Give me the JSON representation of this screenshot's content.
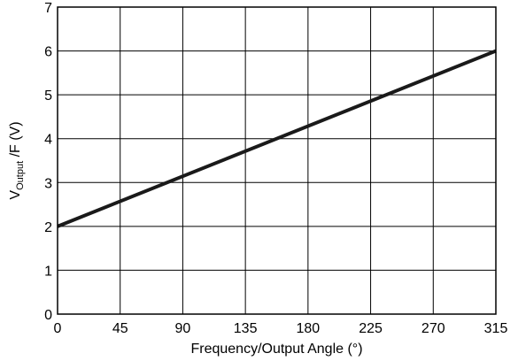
{
  "chart_data": {
    "type": "line",
    "xlabel": "Frequency/Output Angle (°)",
    "ylabel": {
      "main": "V",
      "sub": "Output",
      "rest": " /F (V)"
    },
    "xlim": [
      0,
      315
    ],
    "ylim": [
      0,
      7
    ],
    "x_ticks": [
      0,
      45,
      90,
      135,
      180,
      225,
      270,
      315
    ],
    "y_ticks": [
      0,
      1,
      2,
      3,
      4,
      5,
      6,
      7
    ],
    "grid": true,
    "series": [
      {
        "x": [
          0,
          315
        ],
        "y": [
          2,
          6
        ]
      }
    ],
    "colors": {
      "line": "#1a1a1a",
      "grid": "#000000"
    }
  }
}
